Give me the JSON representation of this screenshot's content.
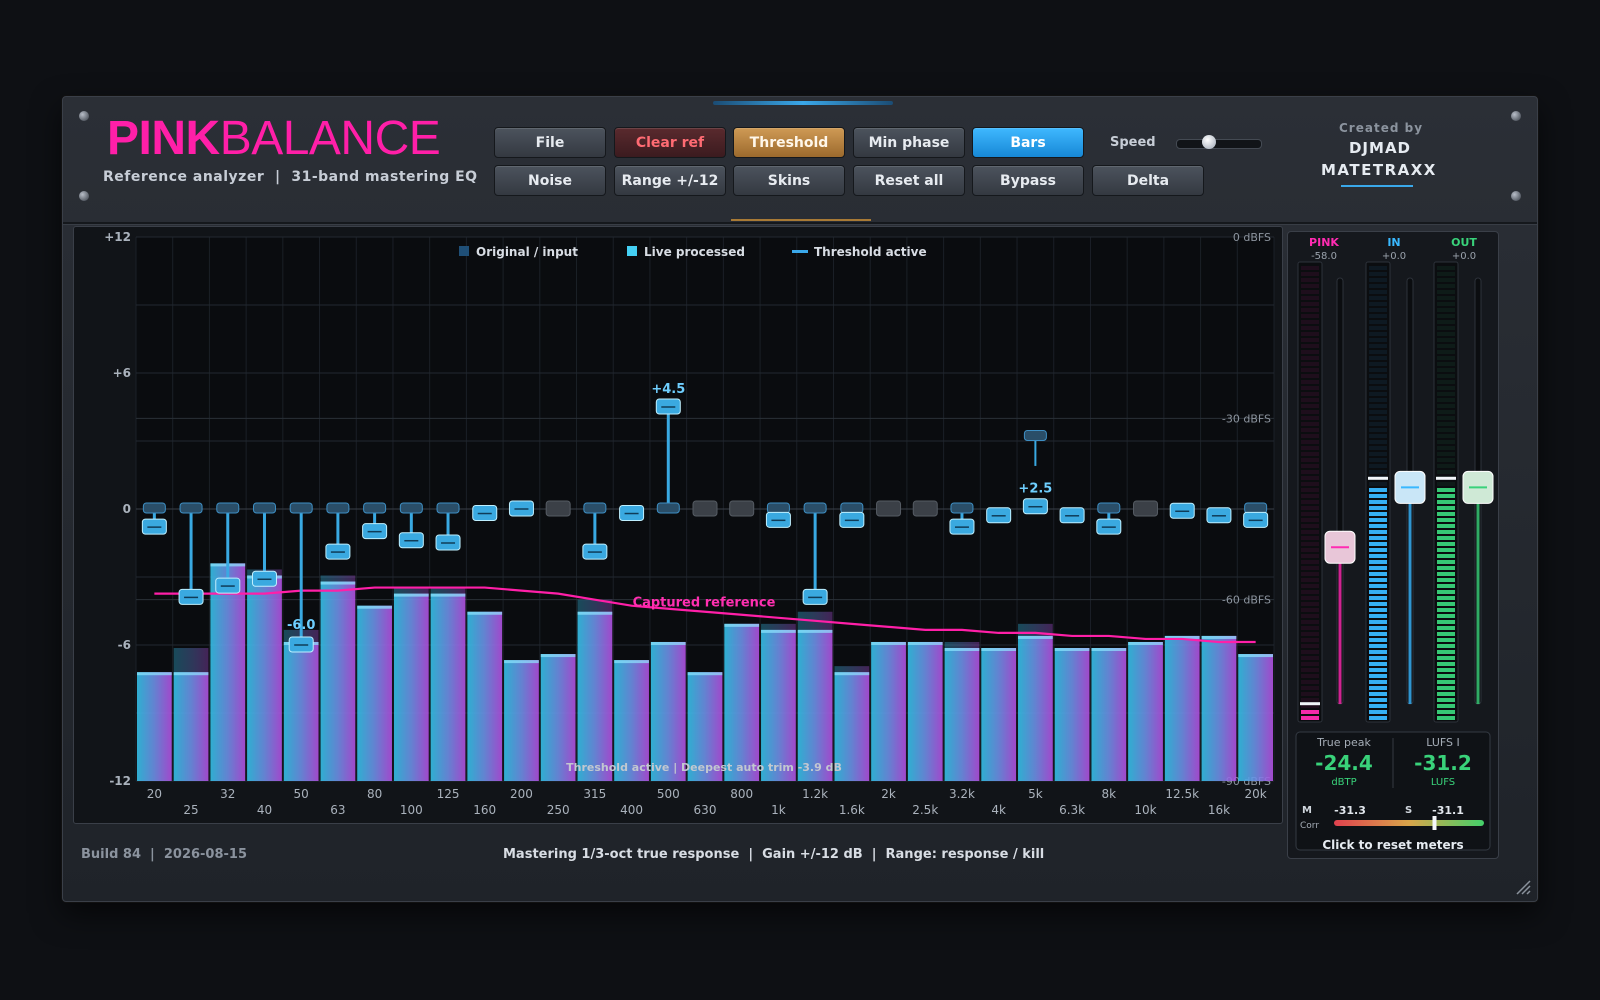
{
  "header": {
    "logo_bold": "PINK",
    "logo_light": "BALANCE",
    "subtitle": "Reference analyzer  |  31-band mastering EQ",
    "credit_label": "Created by",
    "credit_name1": "DJMAD",
    "credit_name2": "MATETRAXX"
  },
  "toolbar": {
    "row1": [
      "File",
      "Clear ref",
      "Threshold",
      "Min phase",
      "Bars"
    ],
    "row2": [
      "Noise",
      "Range +/-12",
      "Skins",
      "Reset all",
      "Bypass",
      "Delta"
    ],
    "speed_label": "Speed",
    "speed_value": 0.38
  },
  "eq": {
    "legend": {
      "original": "Original / input",
      "live": "Live processed",
      "threshold": "Threshold active"
    },
    "left_axis": [
      "+12",
      "+6",
      "0",
      "-6",
      "-12"
    ],
    "right_axis": [
      "0 dBFS",
      "-30 dBFS",
      "-60 dBFS",
      "-90 dBFS"
    ],
    "reference_label": "Captured reference",
    "bottom_status": "Threshold active  |  Deepest auto trim -3.9 dB",
    "freq_labels_top": [
      "20",
      "32",
      "50",
      "80",
      "125",
      "200",
      "315",
      "500",
      "800",
      "1.2k",
      "2k",
      "3.2k",
      "5k",
      "8k",
      "12.5k",
      "20k"
    ],
    "freq_labels_bottom": [
      "25",
      "40",
      "63",
      "100",
      "160",
      "250",
      "400",
      "630",
      "1k",
      "1.6k",
      "2.5k",
      "4k",
      "6.3k",
      "10k",
      "16k"
    ],
    "handle_labels": [
      {
        "band": 4,
        "text": "-6.0"
      },
      {
        "band": 14,
        "text": "+4.5"
      },
      {
        "band": 24,
        "text": "+2.5"
      }
    ]
  },
  "chart_data": {
    "type": "bar",
    "title": "",
    "categories": [
      "20",
      "25",
      "32",
      "40",
      "50",
      "63",
      "80",
      "100",
      "125",
      "160",
      "200",
      "250",
      "315",
      "400",
      "500",
      "630",
      "800",
      "1k",
      "1.2k",
      "1.6k",
      "2k",
      "2.5k",
      "3.2k",
      "4k",
      "5k",
      "6.3k",
      "8k",
      "10k",
      "12.5k",
      "16k",
      "20k"
    ],
    "ylim_gain_db": [
      -12,
      12
    ],
    "ylim_level_dbfs": [
      -90,
      0
    ],
    "series": [
      {
        "name": "Live processed",
        "unit": "dBFS",
        "values": [
          -72,
          -72,
          -54,
          -56,
          -67,
          -57,
          -61,
          -59,
          -59,
          -62,
          -70,
          -69,
          -62,
          -70,
          -67,
          -72,
          -64,
          -65,
          -65,
          -72,
          -67,
          -67,
          -68,
          -68,
          -66,
          -68,
          -68,
          -67,
          -66,
          -66,
          -69
        ]
      },
      {
        "name": "Original / input",
        "unit": "dBFS",
        "values": [
          -72,
          -68,
          -54,
          -55,
          -65,
          -56,
          -61,
          -58,
          -58,
          -62,
          -70,
          -69,
          -60,
          -70,
          -67,
          -72,
          -64,
          -64,
          -62,
          -71,
          -67,
          -67,
          -67,
          -68,
          -64,
          -68,
          -68,
          -67,
          -66,
          -66,
          -69
        ]
      },
      {
        "name": "Captured reference",
        "unit": "dBFS",
        "values": [
          -59,
          -59,
          -59,
          -59,
          -58.5,
          -58.5,
          -58,
          -58,
          -58,
          -58,
          -58.5,
          -59,
          -60,
          -61,
          -61.5,
          -62,
          -62.5,
          -63,
          -63.5,
          -64,
          -64.5,
          -65,
          -65,
          -65.5,
          -65.5,
          -66,
          -66,
          -66.5,
          -66.5,
          -67,
          -67
        ]
      },
      {
        "name": "EQ gain",
        "unit": "dB",
        "values": [
          -0.8,
          -3.9,
          -3.4,
          -3.1,
          -6.0,
          -1.9,
          -1.0,
          -1.4,
          -1.5,
          -0.2,
          0,
          -0.2,
          -1.9,
          -0.2,
          4.5,
          0,
          0,
          -0.5,
          -3.9,
          -0.5,
          0,
          0,
          -0.8,
          -0.3,
          0.1,
          -0.3,
          -0.8,
          0,
          -0.1,
          -0.3,
          -0.5
        ]
      }
    ],
    "threshold_active": [
      true,
      true,
      true,
      true,
      true,
      true,
      true,
      true,
      true,
      true,
      true,
      false,
      true,
      true,
      true,
      false,
      false,
      true,
      true,
      true,
      false,
      false,
      true,
      true,
      true,
      true,
      true,
      false,
      true,
      true,
      true
    ]
  },
  "meters": {
    "pink": {
      "label": "PINK",
      "value": "-58.0",
      "fill": 0.03,
      "fader": 0.38,
      "color": "#ff2bb2"
    },
    "in": {
      "label": "IN",
      "value": "+0.0",
      "fill": 0.52,
      "fader": 0.51,
      "color": "#39b8ff"
    },
    "out": {
      "label": "OUT",
      "value": "+0.0",
      "fill": 0.52,
      "fader": 0.51,
      "color": "#39d27a"
    },
    "true_peak_label": "True peak",
    "true_peak_value": "-24.4",
    "true_peak_unit": "dBTP",
    "lufs_label": "LUFS I",
    "lufs_value": "-31.2",
    "lufs_unit": "LUFS",
    "m_label": "M",
    "m_value": "-31.3",
    "s_label": "S",
    "s_value": "-31.1",
    "corr_label": "Corr",
    "corr_value": 0.67,
    "reset_label": "Click to reset meters"
  },
  "footer": {
    "build": "Build 84  |  2026-08-15",
    "info": "Mastering 1/3-oct true response  |  Gain +/-12 dB  |  Range: response / kill"
  },
  "colors": {
    "accent_pink": "#ff1fa8",
    "accent_blue": "#3aa8ea",
    "accent_green": "#39d27a",
    "orange": "#c8914d"
  }
}
